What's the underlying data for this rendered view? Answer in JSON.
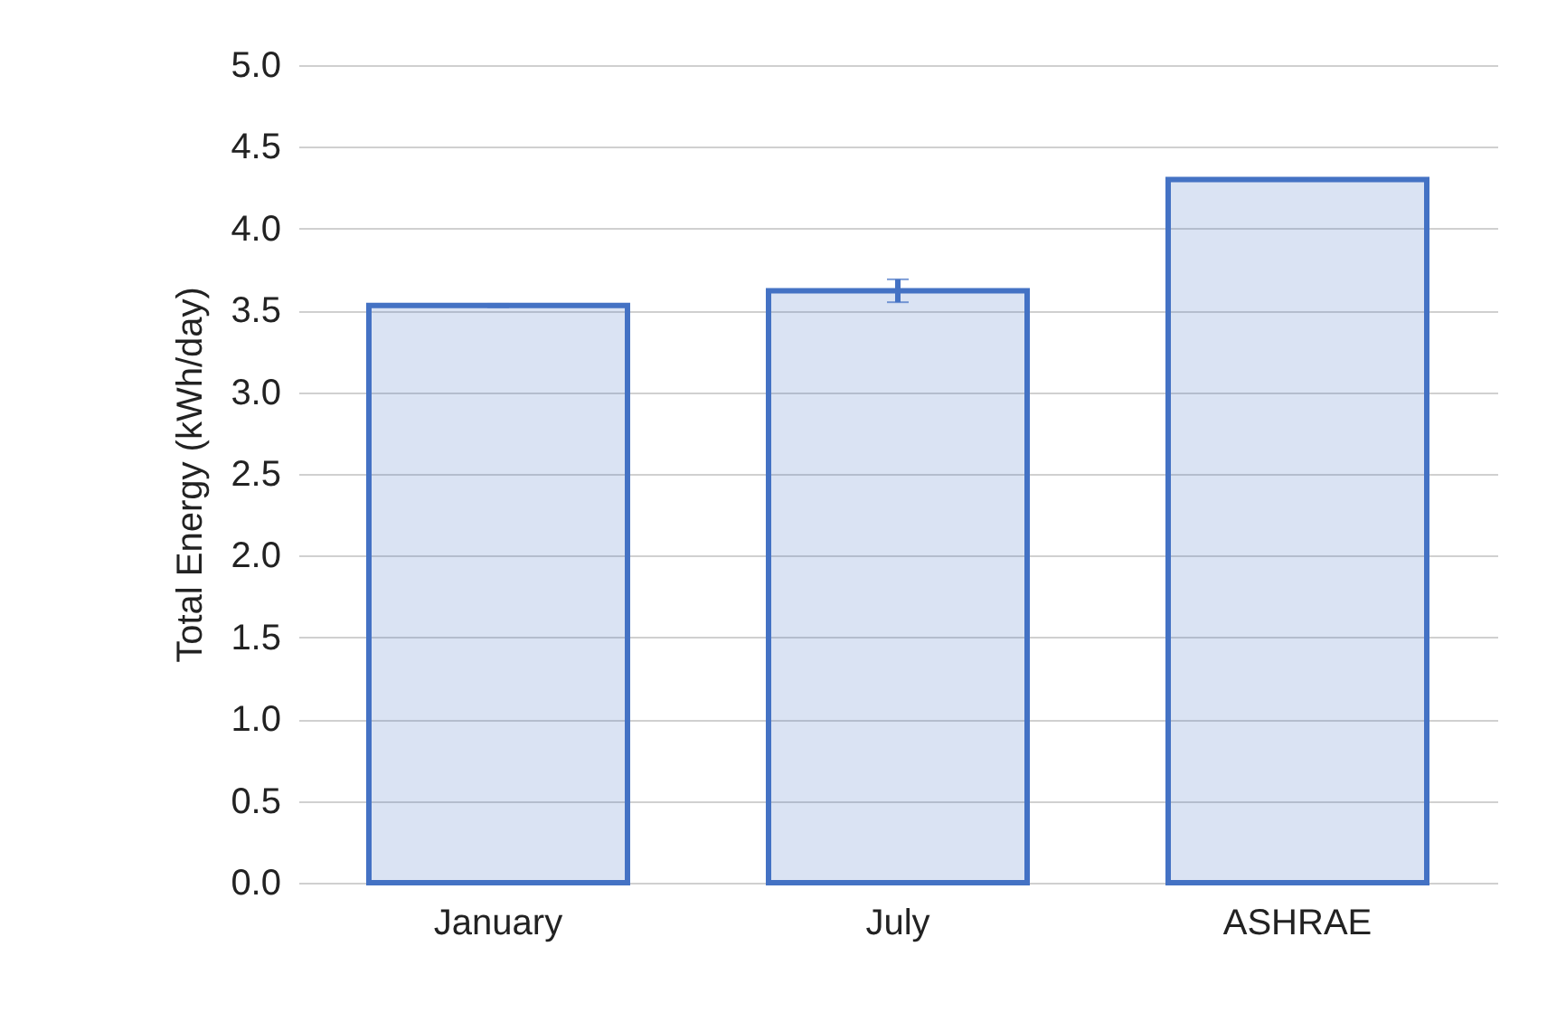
{
  "chart_data": {
    "type": "bar",
    "ylabel": "Total Energy (kWh/day)",
    "categories": [
      "January",
      "July",
      "ASHRAE"
    ],
    "values": [
      3.53,
      3.62,
      4.3
    ],
    "errors": [
      0.01,
      0.07,
      0.005
    ],
    "color": "#4472c4",
    "ylim": [
      0,
      5
    ],
    "yticks": [
      {
        "value": 0,
        "label": "0.0"
      },
      0.5,
      {
        "value": 1,
        "label": "1.0"
      },
      1.5,
      {
        "value": 2,
        "label": "2.0"
      },
      2.5,
      {
        "value": 3,
        "label": "3.0"
      },
      3.5,
      {
        "value": 4,
        "label": "4.0"
      },
      4.5,
      {
        "value": 5,
        "label": "5.0"
      }
    ],
    "grid": "y"
  }
}
